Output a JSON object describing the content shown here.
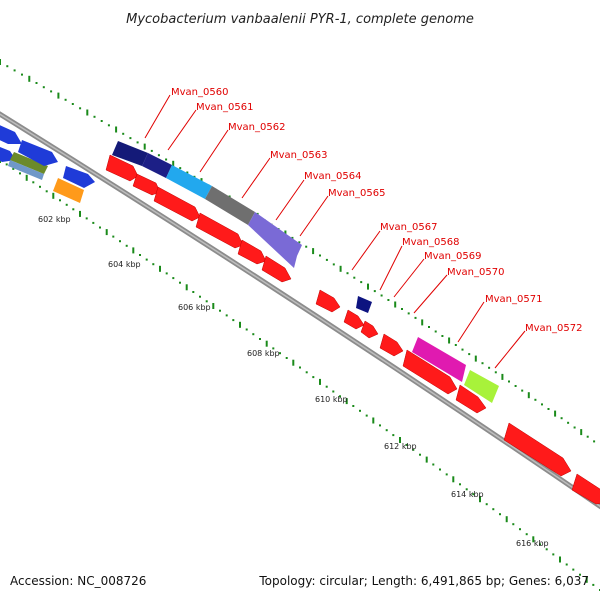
{
  "title": "Mycobacterium vanbaalenii PYR-1, complete genome",
  "footer": {
    "accession": "Accession: NC_008726",
    "summary": "Topology: circular; Length: 6,491,865 bp; Genes: 6,037"
  },
  "tick_labels": [
    "602 kbp",
    "604 kbp",
    "606 kbp",
    "608 kbp",
    "610 kbp",
    "612 kbp",
    "614 kbp",
    "616 kbp"
  ],
  "gene_labels": [
    "Mvan_0560",
    "Mvan_0561",
    "Mvan_0562",
    "Mvan_0563",
    "Mvan_0564",
    "Mvan_0565",
    "Mvan_0567",
    "Mvan_0568",
    "Mvan_0569",
    "Mvan_0570",
    "Mvan_0571",
    "Mvan_0572"
  ],
  "colors": {
    "cds": "#ff1a1a",
    "backbone": "#8c8c8c",
    "gc_skew": "#1a7a1a",
    "label": "#e00000"
  }
}
